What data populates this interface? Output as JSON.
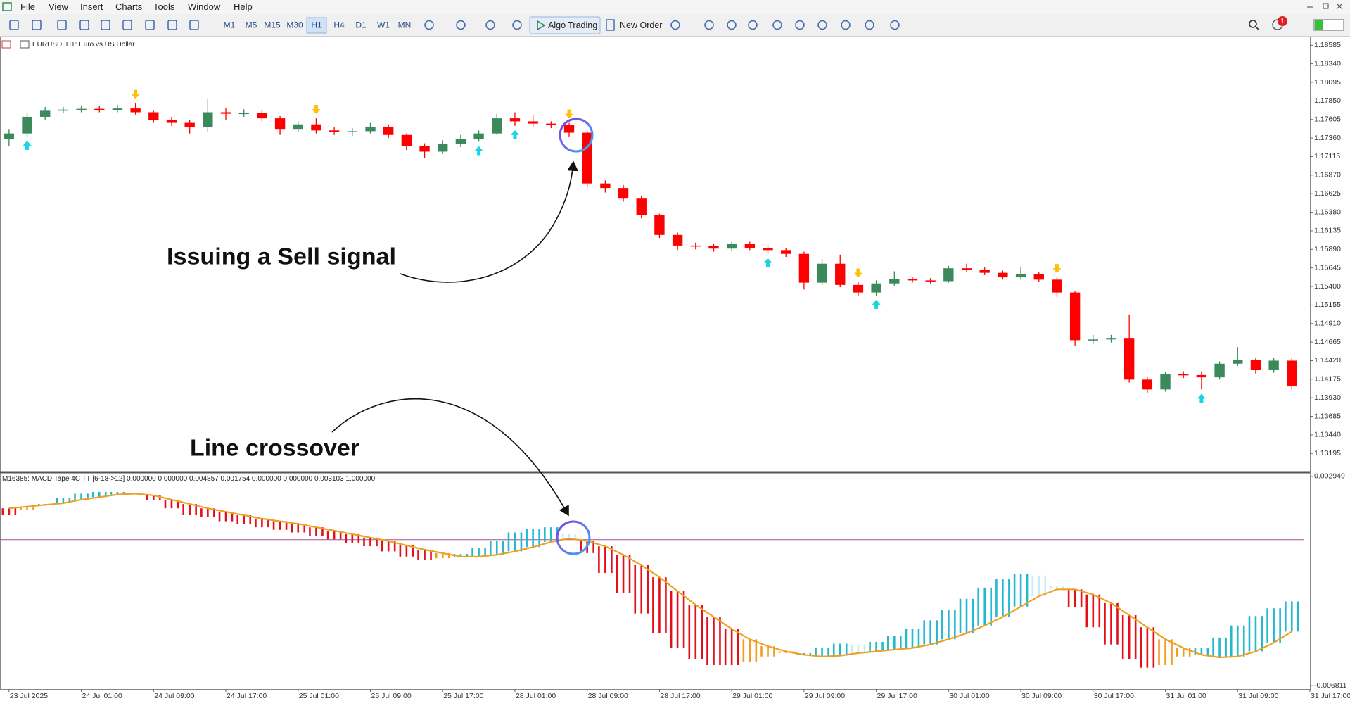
{
  "menu": [
    "File",
    "View",
    "Insert",
    "Charts",
    "Tools",
    "Window",
    "Help"
  ],
  "toolbar": {
    "timeframes": [
      "M1",
      "M5",
      "M15",
      "M30",
      "H1",
      "H4",
      "D1",
      "W1",
      "MN"
    ],
    "active_timeframe_index": 4,
    "algo_trading": "Algo Trading",
    "new_order": "New Order",
    "notifications": 1
  },
  "annotations": {
    "sell_signal": "Issuing a Sell signal",
    "crossover": "Line crossover"
  },
  "chart_data": [
    {
      "type": "candlestick",
      "title": "EURUSD, H1:  Euro vs US Dollar",
      "open": [
        1.1735,
        1.1742,
        1.1764,
        1.1772,
        1.17735,
        1.17745,
        1.1773,
        1.1775,
        1.177,
        1.176,
        1.1756,
        1.175,
        1.177,
        1.1768,
        1.1769,
        1.1762,
        1.1748,
        1.1754,
        1.1746,
        1.1744,
        1.1745,
        1.1751,
        1.174,
        1.1725,
        1.1718,
        1.1728,
        1.1735,
        1.1742,
        1.1762,
        1.1758,
        1.1755,
        1.1753,
        1.1743,
        1.1676,
        1.167,
        1.1656,
        1.1634,
        1.1608,
        1.1594,
        1.1593,
        1.159,
        1.1596,
        1.1591,
        1.1588,
        1.1583,
        1.1545,
        1.157,
        1.1542,
        1.1532,
        1.1544,
        1.155,
        1.1548,
        1.1547,
        1.1564,
        1.1562,
        1.1558,
        1.1552,
        1.1556,
        1.1549,
        1.1532,
        1.1469,
        1.147,
        1.1472,
        1.1417,
        1.1404,
        1.1424,
        1.1423,
        1.142,
        1.1438,
        1.1443,
        1.143,
        1.1442
      ],
      "high": [
        1.1748,
        1.1769,
        1.1777,
        1.1777,
        1.1779,
        1.1778,
        1.178,
        1.1782,
        1.1772,
        1.1764,
        1.176,
        1.1788,
        1.1776,
        1.1774,
        1.1773,
        1.1765,
        1.1758,
        1.1762,
        1.175,
        1.1749,
        1.1756,
        1.1754,
        1.1742,
        1.1729,
        1.1733,
        1.174,
        1.1746,
        1.1768,
        1.177,
        1.1766,
        1.1758,
        1.1756,
        1.1745,
        1.168,
        1.1674,
        1.166,
        1.1636,
        1.1611,
        1.1598,
        1.1596,
        1.1599,
        1.1599,
        1.1595,
        1.1591,
        1.1586,
        1.1576,
        1.1582,
        1.1546,
        1.1548,
        1.156,
        1.1553,
        1.1551,
        1.1567,
        1.157,
        1.1565,
        1.1561,
        1.1566,
        1.1559,
        1.1552,
        1.1534,
        1.1476,
        1.1476,
        1.1503,
        1.142,
        1.1427,
        1.1428,
        1.1428,
        1.1441,
        1.146,
        1.1446,
        1.1446,
        1.1445
      ],
      "low": [
        1.1725,
        1.1738,
        1.176,
        1.1769,
        1.177,
        1.177,
        1.177,
        1.1767,
        1.1756,
        1.1752,
        1.1742,
        1.1744,
        1.176,
        1.1764,
        1.1758,
        1.174,
        1.1744,
        1.1742,
        1.174,
        1.1739,
        1.1742,
        1.1736,
        1.172,
        1.171,
        1.1715,
        1.1724,
        1.1731,
        1.174,
        1.1752,
        1.175,
        1.1749,
        1.1738,
        1.1672,
        1.1664,
        1.1652,
        1.163,
        1.1604,
        1.1588,
        1.1589,
        1.1586,
        1.1587,
        1.1588,
        1.1583,
        1.1579,
        1.1536,
        1.1542,
        1.1539,
        1.1528,
        1.1528,
        1.1541,
        1.1545,
        1.1544,
        1.1545,
        1.1559,
        1.1555,
        1.1549,
        1.1549,
        1.1546,
        1.1526,
        1.1462,
        1.1464,
        1.1466,
        1.1413,
        1.1399,
        1.1401,
        1.1419,
        1.1404,
        1.1417,
        1.1435,
        1.1425,
        1.1426,
        1.1404
      ],
      "close": [
        1.1742,
        1.1764,
        1.1772,
        1.17735,
        1.17745,
        1.1773,
        1.1775,
        1.177,
        1.176,
        1.1756,
        1.175,
        1.177,
        1.1768,
        1.1769,
        1.1762,
        1.1748,
        1.1754,
        1.1746,
        1.1744,
        1.1745,
        1.1751,
        1.174,
        1.1725,
        1.1718,
        1.1728,
        1.1735,
        1.1742,
        1.1762,
        1.1758,
        1.1755,
        1.1753,
        1.1743,
        1.1676,
        1.167,
        1.1656,
        1.1634,
        1.1608,
        1.1594,
        1.1593,
        1.159,
        1.1596,
        1.1591,
        1.1588,
        1.1583,
        1.1545,
        1.157,
        1.1542,
        1.1532,
        1.1544,
        1.155,
        1.1548,
        1.1547,
        1.1564,
        1.1562,
        1.1558,
        1.1552,
        1.1556,
        1.1549,
        1.1532,
        1.1469,
        1.147,
        1.1472,
        1.1417,
        1.1404,
        1.1424,
        1.1423,
        1.142,
        1.1438,
        1.1443,
        1.143,
        1.1442,
        1.1408
      ],
      "up_color": "#3a8a5c",
      "down_color": "#ff0000",
      "buy_signals": [
        1,
        26,
        28,
        42,
        48,
        66
      ],
      "buy_color": "#16d6e0",
      "sell_signals": [
        7,
        17,
        31,
        47,
        58
      ],
      "sell_color": "#ffc107",
      "xlim": [
        -0.5,
        72
      ],
      "ylim": [
        1.12956,
        1.18699
      ],
      "yticks": [
        1.18585,
        {
          "value": 1.1834,
          "label": "1.18340"
        },
        1.18095,
        {
          "value": 1.1785,
          "label": "1.17850"
        },
        1.17605,
        {
          "value": 1.1736,
          "label": "1.17360"
        },
        1.17115,
        {
          "value": 1.1687,
          "label": "1.16870"
        },
        1.16625,
        {
          "value": 1.1638,
          "label": "1.16380"
        },
        1.16135,
        {
          "value": 1.1589,
          "label": "1.15890"
        },
        1.15645,
        {
          "value": 1.154,
          "label": "1.15400"
        },
        1.15155,
        {
          "value": 1.1491,
          "label": "1.14910"
        },
        1.14665,
        {
          "value": 1.1442,
          "label": "1.14420"
        },
        1.14175,
        {
          "value": 1.1393,
          "label": "1.13930"
        },
        1.13685,
        {
          "value": 1.1344,
          "label": "1.13440"
        },
        1.13195
      ]
    },
    {
      "type": "macd_tape",
      "title": "M16385: MACD Tape 4C TT [6-18->12] 0.000000 0.000000 0.004857 0.001754 0.000000 0.000000 0.003103 1.000000",
      "macd": [
        0.00114,
        0.001381,
        0.001663,
        0.001944,
        0.002145,
        0.002225,
        0.002225,
        0.002145,
        0.001864,
        0.001462,
        0.00114,
        0.00106,
        0.000859,
        0.000738,
        0.000577,
        0.000457,
        0.000336,
        0.000175,
        1.4e-05,
        -0.000146,
        -0.000307,
        -0.000548,
        -0.00079,
        -0.00095,
        -0.00087,
        -0.000669,
        -0.000388,
        -6.6e-05,
        0.000336,
        0.000497,
        0.000577,
        0.000256,
        -0.000629,
        -0.001553,
        -0.002478,
        -0.003443,
        -0.004367,
        -0.005051,
        -0.005573,
        -0.005855,
        -0.005855,
        -0.005694,
        -0.005453,
        -0.005292,
        -0.005292,
        -0.005051,
        -0.00485,
        -0.00489,
        -0.004769,
        -0.004488,
        -0.004166,
        -0.003764,
        -0.003282,
        -0.002759,
        -0.002237,
        -0.001835,
        -0.001594,
        -0.001674,
        -0.002156,
        -0.003161,
        -0.004086,
        -0.00489,
        -0.005573,
        -0.005975,
        -0.005855,
        -0.005453,
        -0.005051,
        -0.004568,
        -0.004006,
        -0.003563,
        -0.003202,
        -0.00288
      ],
      "signal": [
        0.001462,
        0.001542,
        0.001622,
        0.001703,
        0.001864,
        0.001984,
        0.002105,
        0.002145,
        0.002065,
        0.001864,
        0.001663,
        0.001462,
        0.001301,
        0.00114,
        0.000979,
        0.000859,
        0.000738,
        0.000577,
        0.000416,
        0.000256,
        9.5e-05,
        -6.6e-05,
        -0.000267,
        -0.000468,
        -0.000629,
        -0.00079,
        -0.00079,
        -0.000709,
        -0.000548,
        -0.000347,
        -0.000106,
        5.5e-05,
        -6.6e-05,
        -0.000307,
        -0.000709,
        -0.001192,
        -0.001754,
        -0.002398,
        -0.003041,
        -0.003604,
        -0.004166,
        -0.004649,
        -0.00497,
        -0.005212,
        -0.005372,
        -0.005453,
        -0.005413,
        -0.005292,
        -0.005212,
        -0.005131,
        -0.005051,
        -0.00489,
        -0.004649,
        -0.004367,
        -0.004006,
        -0.003604,
        -0.003121,
        -0.002639,
        -0.002317,
        -0.002317,
        -0.002558,
        -0.00296,
        -0.003523,
        -0.004086,
        -0.004649,
        -0.005051,
        -0.005372,
        -0.005493,
        -0.005453,
        -0.005212,
        -0.00481,
        -0.004287
      ],
      "signal_color": "#f0a020",
      "tape_colors": {
        "rising_above": "#22b8cf",
        "falling_above": "#c6ecf4",
        "falling_below": "#e3101a",
        "rising_below": "#f39c1f"
      },
      "level": 0,
      "level_color": "#a0509a",
      "xlim": [
        -0.5,
        72
      ],
      "xticks": [
        {
          "value": 0,
          "label": "23 Jul 2025"
        },
        {
          "value": 4,
          "label": "24 Jul 01:00"
        },
        {
          "value": 8,
          "label": "24 Jul 09:00"
        },
        {
          "value": 12,
          "label": "24 Jul 17:00"
        },
        {
          "value": 16,
          "label": "25 Jul 01:00"
        },
        {
          "value": 20,
          "label": "25 Jul 09:00"
        },
        {
          "value": 24,
          "label": "25 Jul 17:00"
        },
        {
          "value": 28,
          "label": "28 Jul 01:00"
        },
        {
          "value": 32,
          "label": "28 Jul 09:00"
        },
        {
          "value": 36,
          "label": "28 Jul 17:00"
        },
        {
          "value": 40,
          "label": "29 Jul 01:00"
        },
        {
          "value": 44,
          "label": "29 Jul 09:00"
        },
        {
          "value": 48,
          "label": "29 Jul 17:00"
        },
        {
          "value": 52,
          "label": "30 Jul 01:00"
        },
        {
          "value": 56,
          "label": "30 Jul 09:00"
        },
        {
          "value": 60,
          "label": "30 Jul 17:00"
        },
        {
          "value": 64,
          "label": "31 Jul 01:00"
        },
        {
          "value": 68,
          "label": "31 Jul 09:00"
        },
        {
          "value": 72,
          "label": "31 Jul 17:00"
        }
      ],
      "ylim": [
        -0.00697,
        0.00311
      ],
      "yticks": [
        0.002949,
        -0.006811
      ]
    }
  ]
}
